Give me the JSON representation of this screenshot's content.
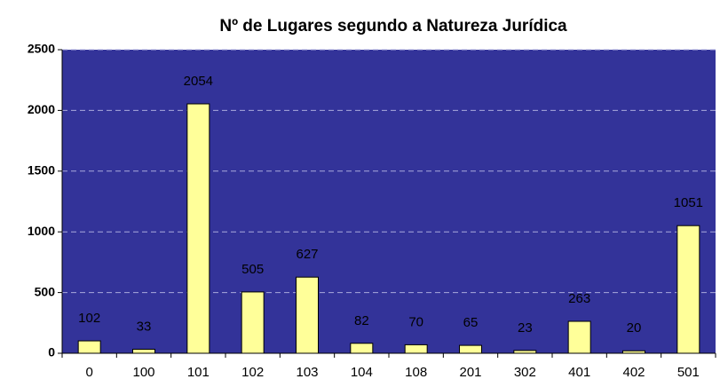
{
  "chart_data": {
    "type": "bar",
    "title": "Nº de Lugares segundo a Natureza Jurídica",
    "categories": [
      "0",
      "100",
      "101",
      "102",
      "103",
      "104",
      "108",
      "201",
      "302",
      "401",
      "402",
      "501"
    ],
    "values": [
      102,
      33,
      2054,
      505,
      627,
      82,
      70,
      65,
      23,
      263,
      20,
      1051
    ],
    "color": "#ffff99",
    "background": "#333399",
    "ylim": [
      0,
      2500
    ],
    "yticks": [
      0,
      500,
      1000,
      1500,
      2000,
      2500
    ],
    "grid": true
  }
}
